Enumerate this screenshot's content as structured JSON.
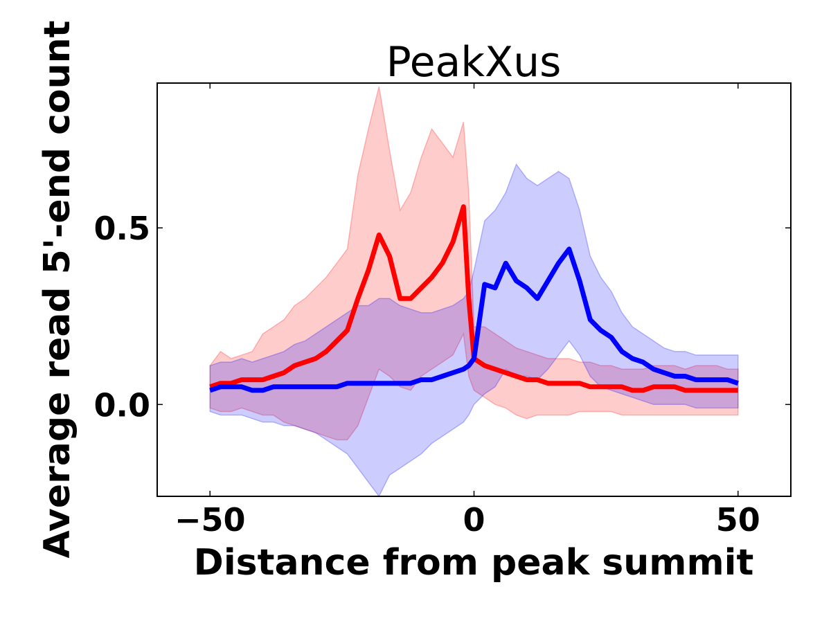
{
  "chart_data": {
    "type": "line",
    "title": "PeakXus",
    "xlabel": "Distance from peak summit",
    "ylabel": "Average read 5'-end count",
    "xlim": [
      -60,
      60
    ],
    "ylim": [
      -0.26,
      0.91
    ],
    "xticks": [
      -50,
      0,
      50
    ],
    "xtick_labels": [
      "−50",
      "0",
      "50"
    ],
    "yticks": [
      0.0,
      0.5
    ],
    "ytick_labels": [
      "0.0",
      "0.5"
    ],
    "grid": false,
    "legend": "none",
    "colors": {
      "red": "#ff0000",
      "blue": "#0000ff",
      "red_band": "#ff0000",
      "blue_band": "#0000ff"
    },
    "x": [
      -50,
      -48,
      -46,
      -44,
      -42,
      -40,
      -38,
      -36,
      -34,
      -32,
      -30,
      -28,
      -26,
      -24,
      -22,
      -20,
      -18,
      -16,
      -14,
      -12,
      -10,
      -8,
      -6,
      -4,
      -2,
      -1,
      0,
      2,
      4,
      6,
      8,
      10,
      12,
      14,
      16,
      18,
      20,
      22,
      24,
      26,
      28,
      30,
      32,
      34,
      36,
      38,
      40,
      42,
      44,
      46,
      48,
      50
    ],
    "series": [
      {
        "color": "red",
        "values": [
          0.05,
          0.06,
          0.06,
          0.07,
          0.07,
          0.07,
          0.08,
          0.09,
          0.11,
          0.12,
          0.13,
          0.15,
          0.18,
          0.21,
          0.3,
          0.38,
          0.48,
          0.42,
          0.3,
          0.3,
          0.33,
          0.36,
          0.4,
          0.46,
          0.56,
          0.3,
          0.13,
          0.11,
          0.1,
          0.09,
          0.08,
          0.07,
          0.07,
          0.06,
          0.06,
          0.06,
          0.06,
          0.05,
          0.05,
          0.05,
          0.05,
          0.04,
          0.04,
          0.05,
          0.05,
          0.05,
          0.04,
          0.04,
          0.04,
          0.04,
          0.04,
          0.04
        ],
        "upper": [
          0.11,
          0.15,
          0.13,
          0.14,
          0.15,
          0.2,
          0.22,
          0.24,
          0.28,
          0.3,
          0.33,
          0.36,
          0.4,
          0.44,
          0.65,
          0.78,
          0.9,
          0.72,
          0.55,
          0.6,
          0.7,
          0.78,
          0.74,
          0.7,
          0.8,
          0.6,
          0.22,
          0.22,
          0.2,
          0.18,
          0.16,
          0.15,
          0.14,
          0.13,
          0.13,
          0.13,
          0.12,
          0.12,
          0.11,
          0.11,
          0.1,
          0.1,
          0.1,
          0.11,
          0.11,
          0.11,
          0.1,
          0.11,
          0.11,
          0.11,
          0.1,
          0.1
        ],
        "lower": [
          -0.01,
          -0.02,
          -0.02,
          -0.01,
          -0.02,
          -0.03,
          -0.03,
          -0.05,
          -0.06,
          -0.07,
          -0.08,
          -0.09,
          -0.1,
          -0.1,
          -0.06,
          0.02,
          0.1,
          0.08,
          0.05,
          0.04,
          0.08,
          0.1,
          0.12,
          0.14,
          0.2,
          0.08,
          0.04,
          0.02,
          0.0,
          -0.01,
          -0.03,
          -0.04,
          -0.03,
          -0.03,
          -0.03,
          -0.03,
          -0.02,
          -0.02,
          -0.02,
          -0.02,
          -0.03,
          -0.03,
          -0.03,
          -0.03,
          -0.03,
          -0.03,
          -0.03,
          -0.03,
          -0.03,
          -0.03,
          -0.03,
          -0.03
        ]
      },
      {
        "color": "blue",
        "values": [
          0.04,
          0.05,
          0.05,
          0.05,
          0.04,
          0.04,
          0.05,
          0.05,
          0.05,
          0.05,
          0.05,
          0.05,
          0.05,
          0.06,
          0.06,
          0.06,
          0.06,
          0.06,
          0.06,
          0.06,
          0.07,
          0.07,
          0.08,
          0.09,
          0.1,
          0.11,
          0.13,
          0.34,
          0.33,
          0.4,
          0.35,
          0.33,
          0.3,
          0.35,
          0.4,
          0.44,
          0.35,
          0.24,
          0.21,
          0.19,
          0.15,
          0.13,
          0.12,
          0.1,
          0.09,
          0.08,
          0.08,
          0.07,
          0.07,
          0.07,
          0.07,
          0.06
        ],
        "upper": [
          0.11,
          0.12,
          0.12,
          0.13,
          0.12,
          0.13,
          0.14,
          0.15,
          0.17,
          0.18,
          0.2,
          0.22,
          0.24,
          0.26,
          0.28,
          0.28,
          0.3,
          0.3,
          0.28,
          0.27,
          0.26,
          0.26,
          0.27,
          0.28,
          0.3,
          0.32,
          0.38,
          0.52,
          0.55,
          0.6,
          0.68,
          0.64,
          0.62,
          0.64,
          0.66,
          0.64,
          0.55,
          0.42,
          0.36,
          0.32,
          0.26,
          0.22,
          0.2,
          0.18,
          0.16,
          0.15,
          0.15,
          0.14,
          0.14,
          0.14,
          0.14,
          0.14
        ],
        "lower": [
          -0.02,
          -0.03,
          -0.03,
          -0.03,
          -0.04,
          -0.05,
          -0.05,
          -0.06,
          -0.06,
          -0.07,
          -0.08,
          -0.1,
          -0.12,
          -0.14,
          -0.18,
          -0.22,
          -0.26,
          -0.2,
          -0.18,
          -0.16,
          -0.14,
          -0.11,
          -0.09,
          -0.07,
          -0.05,
          -0.03,
          0.0,
          0.03,
          0.05,
          0.1,
          0.08,
          0.08,
          0.07,
          0.1,
          0.14,
          0.18,
          0.14,
          0.08,
          0.05,
          0.04,
          0.03,
          0.02,
          0.01,
          0.0,
          0.0,
          0.0,
          0.0,
          -0.01,
          -0.01,
          -0.01,
          -0.01,
          -0.01
        ]
      }
    ]
  }
}
